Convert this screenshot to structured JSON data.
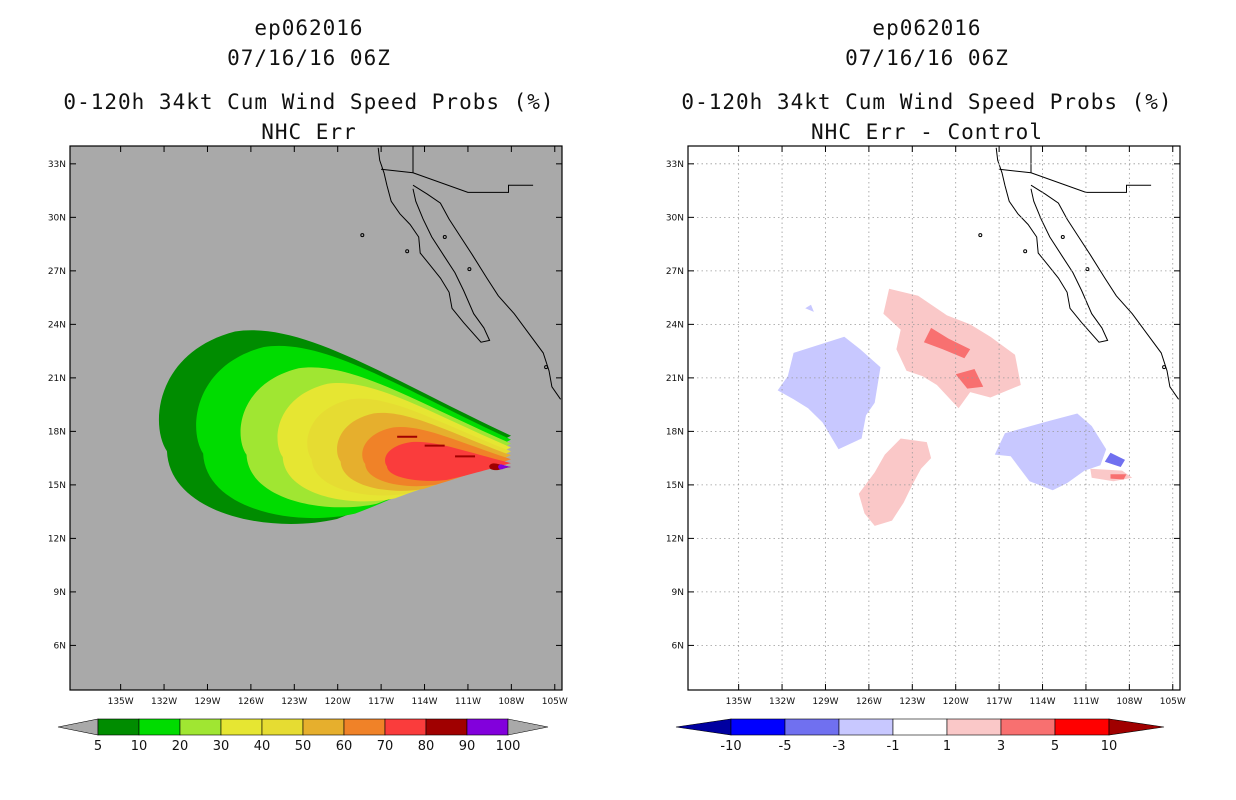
{
  "colors": {
    "land_sea_bg": "#a9a9a9",
    "coast": "#000000",
    "grid": "#9a9a9a"
  },
  "left_panel": {
    "title_line1": "ep062016",
    "title_line2": "07/16/16 06Z",
    "title_line3": "0-120h 34kt Cum Wind Speed Probs (%)",
    "title_line4": "NHC Err"
  },
  "right_panel": {
    "title_line1": "ep062016",
    "title_line2": "07/16/16 06Z",
    "title_line3": "0-120h 34kt Cum Wind Speed Probs (%)",
    "title_line4": "NHC Err - Control"
  },
  "chart_data": [
    {
      "type": "heatmap",
      "title": "0-120h 34kt Cum Wind Speed Probs (%) NHC Err",
      "storm": "ep062016",
      "valid": "07/16/16 06Z",
      "x_ticks": [
        "135W",
        "132W",
        "129W",
        "126W",
        "123W",
        "120W",
        "117W",
        "114W",
        "111W",
        "108W",
        "105W"
      ],
      "y_ticks": [
        "33N",
        "30N",
        "27N",
        "24N",
        "21N",
        "18N",
        "15N",
        "12N",
        "9N",
        "6N"
      ],
      "xlim": [
        -138.5,
        -104.5
      ],
      "ylim": [
        3.5,
        34
      ],
      "colorbar": {
        "levels": [
          "5",
          "10",
          "20",
          "30",
          "40",
          "50",
          "60",
          "70",
          "80",
          "90",
          "100"
        ],
        "colors": [
          "#008c00",
          "#00dc00",
          "#a0e632",
          "#e6e632",
          "#e6dc32",
          "#e6af2d",
          "#f08228",
          "#fa3c3c",
          "#a00000",
          "#8200dc"
        ]
      },
      "storm_center": {
        "lon": -108.3,
        "lat": 16.0
      },
      "contours": [
        {
          "level": 5,
          "color": "#008c00"
        },
        {
          "level": 10,
          "color": "#00dc00"
        },
        {
          "level": 20,
          "color": "#a0e632"
        },
        {
          "level": 30,
          "color": "#e6e632"
        },
        {
          "level": 40,
          "color": "#e6dc32"
        },
        {
          "level": 50,
          "color": "#e6af2d"
        },
        {
          "level": 60,
          "color": "#f08228"
        },
        {
          "level": 70,
          "color": "#fa3c3c"
        },
        {
          "level": 80,
          "color": "#a00000"
        },
        {
          "level": 90,
          "color": "#8200dc"
        }
      ]
    },
    {
      "type": "heatmap",
      "title": "0-120h 34kt Cum Wind Speed Probs (%) NHC Err - Control",
      "storm": "ep062016",
      "valid": "07/16/16 06Z",
      "x_ticks": [
        "135W",
        "132W",
        "129W",
        "126W",
        "123W",
        "120W",
        "117W",
        "114W",
        "111W",
        "108W",
        "105W"
      ],
      "y_ticks": [
        "33N",
        "30N",
        "27N",
        "24N",
        "21N",
        "18N",
        "15N",
        "12N",
        "9N",
        "6N"
      ],
      "xlim": [
        -138.5,
        -104.5
      ],
      "ylim": [
        3.5,
        34
      ],
      "colorbar": {
        "levels": [
          "-10",
          "-5",
          "-3",
          "-1",
          "1",
          "3",
          "5",
          "10"
        ],
        "colors": [
          "#0000c8",
          "#0000ff",
          "#7070f0",
          "#c8c8ff",
          "#ffffff",
          "#fac8c8",
          "#f87070",
          "#ff0000",
          "#a00000"
        ],
        "under_color": "#0000a0",
        "over_color": "#a00000"
      },
      "anomalies": [
        {
          "region": "west",
          "sign": "negative",
          "level": "-1 to -3"
        },
        {
          "region": "north-central",
          "sign": "positive",
          "level": "1 to 3, core 3 to 5"
        },
        {
          "region": "south-central",
          "sign": "positive",
          "level": "1 to 3"
        },
        {
          "region": "east near storm",
          "sign": "negative",
          "level": "-1 to -3, core -5"
        },
        {
          "region": "storm center",
          "sign": "positive",
          "level": "3 to 5"
        }
      ]
    }
  ]
}
